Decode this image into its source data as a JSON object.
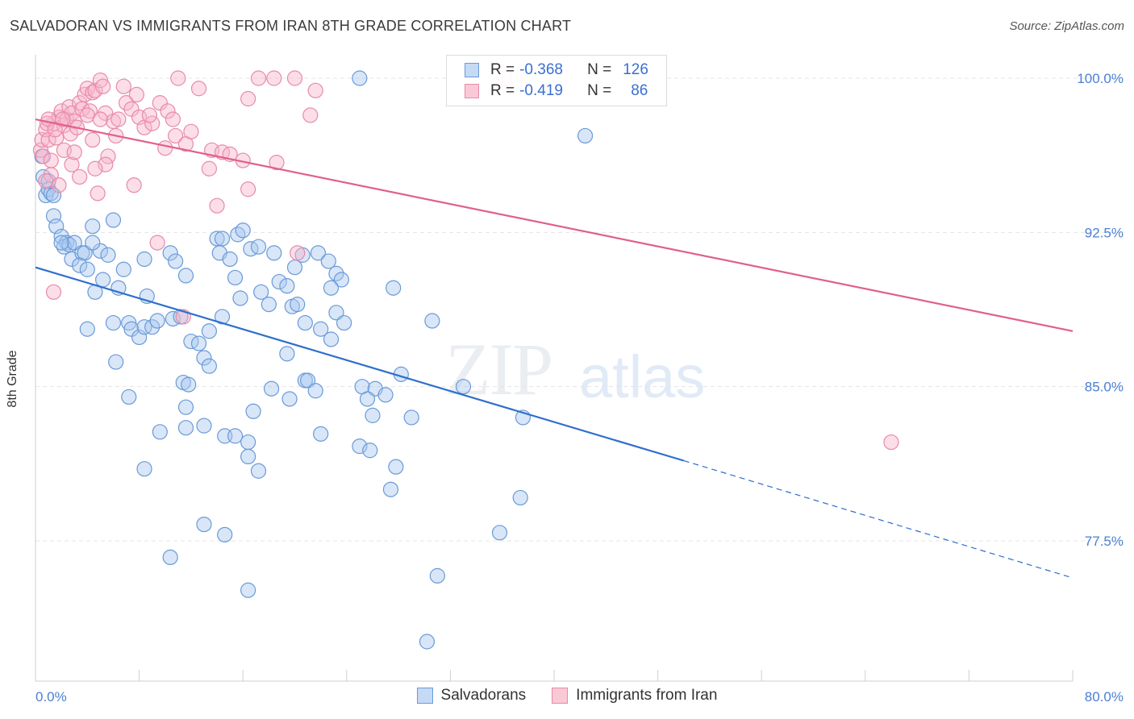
{
  "title": "SALVADORAN VS IMMIGRANTS FROM IRAN 8TH GRADE CORRELATION CHART",
  "source": "Source: ZipAtlas.com",
  "watermark": {
    "part1": "ZIP",
    "part2": "atlas"
  },
  "legend": {
    "rows": [
      {
        "r_label": "R =",
        "r_value": "-0.368",
        "n_label": "N =",
        "n_value": "126"
      },
      {
        "r_label": "R =",
        "r_value": "-0.419",
        "n_label": "N =",
        "n_value": "86"
      }
    ]
  },
  "colors": {
    "blue_fill": "#a9c8f0",
    "blue_stroke": "#6a9ad8",
    "blue_line": "#2f6fcc",
    "pink_fill": "#f6b6cb",
    "pink_stroke": "#e98aa8",
    "pink_line": "#e0608c",
    "tick_text": "#4a7fd4"
  },
  "chart_data": {
    "type": "scatter",
    "title": "SALVADORAN VS IMMIGRANTS FROM IRAN 8TH GRADE CORRELATION CHART",
    "xlabel": "",
    "ylabel": "8th Grade",
    "xlim": [
      0,
      80
    ],
    "ylim": [
      71.5,
      101.5
    ],
    "x_tick_labels": [
      "0.0%",
      "80.0%"
    ],
    "y_ticks": [
      100.0,
      92.5,
      85.0,
      77.5
    ],
    "y_tick_labels": [
      "100.0%",
      "92.5%",
      "85.0%",
      "77.5%"
    ],
    "grid": true,
    "legend_position": "top-center",
    "series": [
      {
        "name": "Salvadorans",
        "color": "#a9c8f0",
        "r": -0.368,
        "n": 126,
        "trend": {
          "x": [
            0,
            50
          ],
          "y": [
            90.8,
            81.4
          ],
          "dashed_to": [
            80,
            75.7
          ]
        },
        "points": [
          [
            0.5,
            96.2
          ],
          [
            0.6,
            95.2
          ],
          [
            0.8,
            94.3
          ],
          [
            1.0,
            94.6
          ],
          [
            1.2,
            94.4
          ],
          [
            1.4,
            93.3
          ],
          [
            1.6,
            92.8
          ],
          [
            2.0,
            92.3
          ],
          [
            2.4,
            92.0
          ],
          [
            2.2,
            91.8
          ],
          [
            2.6,
            91.9
          ],
          [
            3.0,
            92.0
          ],
          [
            4.4,
            92.8
          ],
          [
            6.0,
            93.1
          ],
          [
            2.8,
            91.2
          ],
          [
            3.6,
            91.5
          ],
          [
            3.8,
            91.5
          ],
          [
            5.0,
            91.6
          ],
          [
            5.6,
            91.4
          ],
          [
            3.4,
            90.9
          ],
          [
            4.0,
            90.7
          ],
          [
            6.8,
            90.7
          ],
          [
            8.4,
            91.2
          ],
          [
            10.4,
            91.5
          ],
          [
            10.8,
            91.1
          ],
          [
            11.6,
            90.4
          ],
          [
            5.2,
            90.2
          ],
          [
            6.4,
            89.8
          ],
          [
            4.6,
            89.6
          ],
          [
            8.6,
            89.4
          ],
          [
            14.0,
            92.2
          ],
          [
            14.4,
            92.2
          ],
          [
            15.6,
            92.4
          ],
          [
            16.0,
            92.6
          ],
          [
            14.2,
            91.5
          ],
          [
            15.0,
            91.2
          ],
          [
            16.6,
            91.7
          ],
          [
            17.2,
            91.8
          ],
          [
            18.4,
            91.5
          ],
          [
            15.4,
            90.3
          ],
          [
            20.6,
            91.4
          ],
          [
            21.8,
            91.5
          ],
          [
            18.8,
            90.1
          ],
          [
            19.4,
            89.9
          ],
          [
            20.0,
            90.8
          ],
          [
            22.6,
            91.1
          ],
          [
            23.2,
            90.5
          ],
          [
            23.6,
            90.2
          ],
          [
            22.8,
            89.8
          ],
          [
            27.6,
            89.8
          ],
          [
            15.8,
            89.3
          ],
          [
            17.4,
            89.6
          ],
          [
            18.0,
            89.0
          ],
          [
            19.8,
            88.9
          ],
          [
            20.2,
            89.0
          ],
          [
            23.2,
            88.6
          ],
          [
            23.8,
            88.1
          ],
          [
            20.8,
            88.1
          ],
          [
            14.4,
            88.4
          ],
          [
            13.4,
            87.7
          ],
          [
            4.0,
            87.8
          ],
          [
            6.0,
            88.1
          ],
          [
            7.2,
            88.1
          ],
          [
            7.4,
            87.8
          ],
          [
            8.0,
            87.4
          ],
          [
            8.4,
            87.9
          ],
          [
            9.0,
            87.9
          ],
          [
            9.4,
            88.2
          ],
          [
            10.6,
            88.3
          ],
          [
            11.2,
            88.4
          ],
          [
            12.0,
            87.2
          ],
          [
            12.6,
            87.1
          ],
          [
            22.0,
            87.8
          ],
          [
            22.8,
            87.3
          ],
          [
            30.6,
            88.2
          ],
          [
            13.0,
            86.4
          ],
          [
            13.4,
            86.0
          ],
          [
            19.4,
            86.6
          ],
          [
            6.2,
            86.2
          ],
          [
            20.8,
            85.3
          ],
          [
            21.0,
            85.3
          ],
          [
            21.6,
            84.8
          ],
          [
            18.2,
            84.9
          ],
          [
            19.6,
            84.4
          ],
          [
            25.2,
            85.0
          ],
          [
            26.2,
            84.9
          ],
          [
            27.0,
            84.6
          ],
          [
            28.2,
            85.6
          ],
          [
            33.0,
            85.0
          ],
          [
            7.2,
            84.5
          ],
          [
            11.4,
            85.2
          ],
          [
            11.8,
            85.1
          ],
          [
            11.6,
            84.0
          ],
          [
            16.8,
            83.8
          ],
          [
            25.6,
            84.4
          ],
          [
            26.0,
            83.6
          ],
          [
            29.0,
            83.5
          ],
          [
            37.6,
            83.5
          ],
          [
            22.0,
            82.7
          ],
          [
            9.6,
            82.8
          ],
          [
            11.6,
            83.0
          ],
          [
            13.0,
            83.1
          ],
          [
            14.6,
            82.6
          ],
          [
            15.4,
            82.6
          ],
          [
            16.4,
            82.3
          ],
          [
            25.0,
            82.1
          ],
          [
            25.8,
            81.9
          ],
          [
            16.4,
            81.6
          ],
          [
            8.4,
            81.0
          ],
          [
            17.2,
            80.9
          ],
          [
            27.8,
            81.1
          ],
          [
            27.4,
            80.0
          ],
          [
            37.4,
            79.6
          ],
          [
            13.0,
            78.3
          ],
          [
            14.6,
            77.8
          ],
          [
            35.8,
            77.9
          ],
          [
            10.4,
            76.7
          ],
          [
            31.0,
            75.8
          ],
          [
            16.4,
            75.1
          ],
          [
            30.2,
            72.6
          ],
          [
            25.0,
            100.0
          ],
          [
            42.4,
            97.2
          ],
          [
            1.0,
            95.0
          ],
          [
            1.4,
            94.3
          ],
          [
            2.0,
            92.0
          ],
          [
            4.4,
            92.0
          ]
        ]
      },
      {
        "name": "Immigrants from Iran",
        "color": "#f6b6cb",
        "r": -0.419,
        "n": 86,
        "trend": {
          "x": [
            0,
            80
          ],
          "y": [
            98.0,
            87.7
          ]
        },
        "points": [
          [
            0.4,
            96.5
          ],
          [
            0.5,
            97.0
          ],
          [
            0.6,
            96.2
          ],
          [
            0.8,
            97.5
          ],
          [
            1.0,
            97.0
          ],
          [
            1.2,
            96.0
          ],
          [
            1.4,
            97.8
          ],
          [
            1.8,
            98.1
          ],
          [
            2.0,
            98.4
          ],
          [
            2.2,
            97.7
          ],
          [
            2.4,
            98.0
          ],
          [
            2.6,
            98.6
          ],
          [
            2.8,
            98.3
          ],
          [
            3.0,
            97.9
          ],
          [
            3.4,
            98.8
          ],
          [
            3.6,
            98.5
          ],
          [
            3.8,
            99.2
          ],
          [
            4.0,
            99.5
          ],
          [
            4.2,
            98.4
          ],
          [
            4.4,
            99.3
          ],
          [
            4.6,
            99.4
          ],
          [
            5.0,
            99.9
          ],
          [
            5.2,
            99.6
          ],
          [
            5.4,
            98.3
          ],
          [
            6.0,
            97.9
          ],
          [
            6.4,
            98.0
          ],
          [
            6.8,
            99.6
          ],
          [
            7.0,
            98.8
          ],
          [
            7.4,
            98.5
          ],
          [
            8.0,
            98.1
          ],
          [
            8.4,
            97.6
          ],
          [
            9.0,
            97.8
          ],
          [
            9.6,
            98.8
          ],
          [
            10.2,
            98.4
          ],
          [
            10.6,
            98.0
          ],
          [
            10.8,
            97.2
          ],
          [
            11.6,
            96.8
          ],
          [
            12.0,
            97.4
          ],
          [
            12.6,
            99.5
          ],
          [
            11.0,
            100.0
          ],
          [
            13.6,
            96.5
          ],
          [
            14.4,
            96.4
          ],
          [
            15.0,
            96.3
          ],
          [
            16.0,
            96.0
          ],
          [
            16.4,
            99.0
          ],
          [
            17.2,
            100.0
          ],
          [
            18.4,
            100.0
          ],
          [
            20.0,
            100.0
          ],
          [
            21.2,
            98.2
          ],
          [
            21.6,
            99.4
          ],
          [
            1.6,
            97.1
          ],
          [
            2.2,
            96.5
          ],
          [
            2.8,
            95.8
          ],
          [
            3.4,
            95.2
          ],
          [
            4.4,
            97.0
          ],
          [
            5.6,
            96.2
          ],
          [
            5.4,
            95.8
          ],
          [
            4.8,
            94.4
          ],
          [
            7.6,
            94.8
          ],
          [
            9.4,
            92.0
          ],
          [
            16.4,
            94.6
          ],
          [
            14.0,
            93.8
          ],
          [
            13.4,
            95.6
          ],
          [
            18.6,
            95.9
          ],
          [
            20.2,
            91.5
          ],
          [
            11.4,
            88.4
          ],
          [
            1.4,
            89.6
          ],
          [
            1.2,
            95.3
          ],
          [
            0.8,
            95.0
          ],
          [
            0.9,
            97.8
          ],
          [
            1.0,
            98.0
          ],
          [
            1.5,
            97.5
          ],
          [
            2.1,
            98.0
          ],
          [
            2.7,
            97.3
          ],
          [
            3.2,
            97.6
          ],
          [
            4.0,
            98.2
          ],
          [
            5.0,
            98.0
          ],
          [
            6.2,
            97.2
          ],
          [
            7.8,
            99.2
          ],
          [
            8.8,
            98.2
          ],
          [
            10.0,
            96.6
          ],
          [
            36.2,
            100.0
          ],
          [
            66.0,
            82.3
          ],
          [
            1.8,
            94.8
          ],
          [
            3.0,
            96.4
          ],
          [
            4.6,
            95.6
          ]
        ]
      }
    ]
  }
}
